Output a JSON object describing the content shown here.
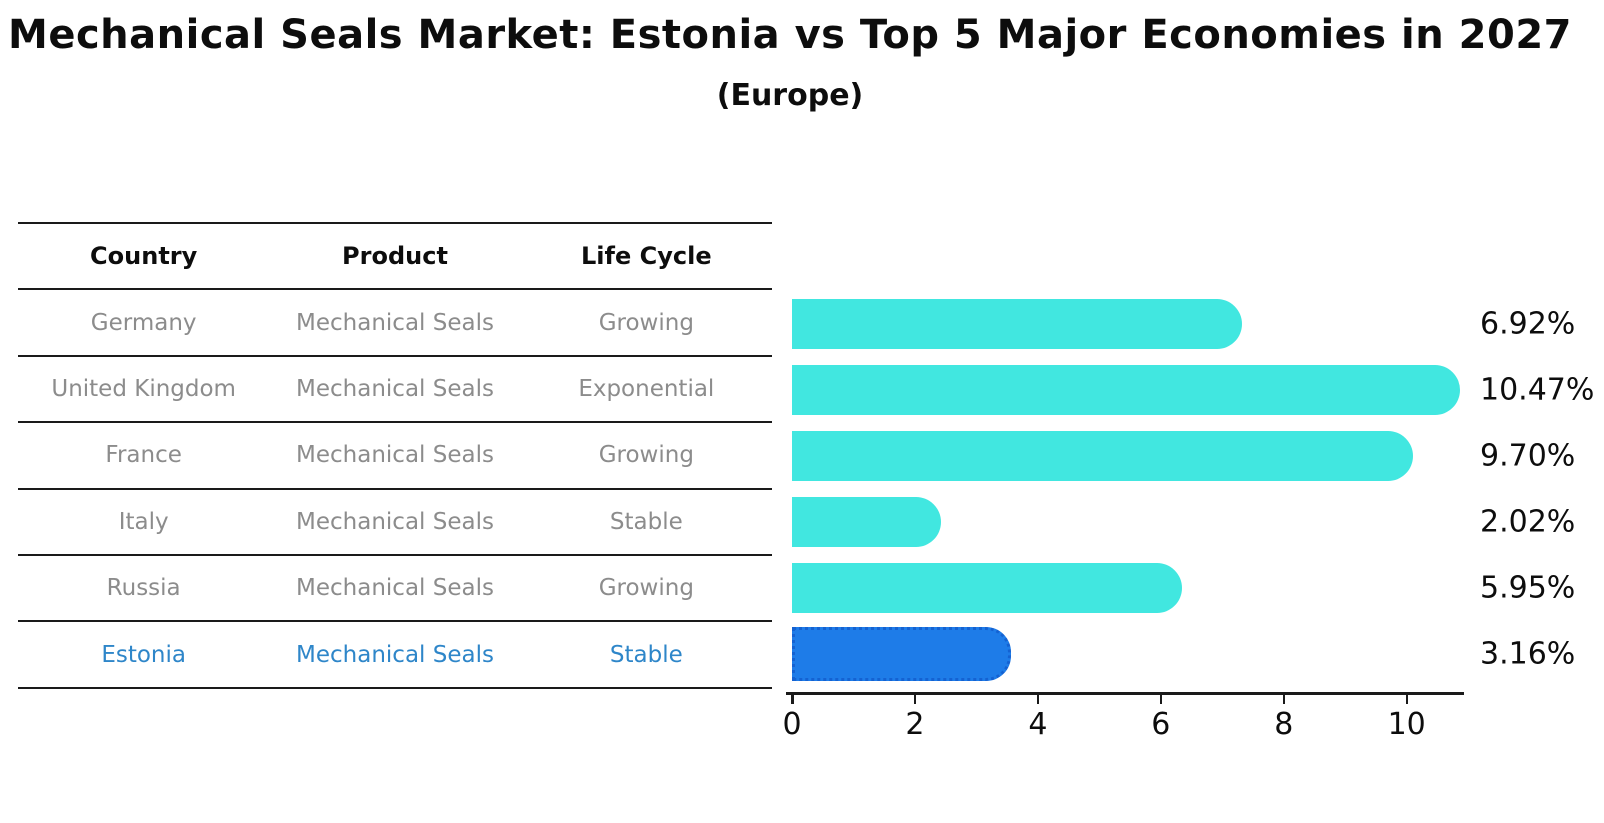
{
  "title": "Mechanical Seals Market: Estonia vs Top 5 Major Economies in 2027",
  "subtitle": "(Europe)",
  "table": {
    "headers": [
      "Country",
      "Product",
      "Life Cycle"
    ],
    "rows": [
      {
        "country": "Germany",
        "product": "Mechanical Seals",
        "life_cycle": "Growing",
        "highlight": false
      },
      {
        "country": "United Kingdom",
        "product": "Mechanical Seals",
        "life_cycle": "Exponential",
        "highlight": false
      },
      {
        "country": "France",
        "product": "Mechanical Seals",
        "life_cycle": "Growing",
        "highlight": false
      },
      {
        "country": "Italy",
        "product": "Mechanical Seals",
        "life_cycle": "Stable",
        "highlight": false
      },
      {
        "country": "Russia",
        "product": "Mechanical Seals",
        "life_cycle": "Growing",
        "highlight": false
      },
      {
        "country": "Estonia",
        "product": "Mechanical Seals",
        "life_cycle": "Stable",
        "highlight": true
      }
    ]
  },
  "chart_data": {
    "type": "bar",
    "orientation": "horizontal",
    "title": "Mechanical Seals Market: Estonia vs Top 5 Major Economies in 2027 (Europe)",
    "categories": [
      "Germany",
      "United Kingdom",
      "France",
      "Italy",
      "Russia",
      "Estonia"
    ],
    "values": [
      6.92,
      10.47,
      9.7,
      2.02,
      5.95,
      3.16
    ],
    "value_labels": [
      "6.92%",
      "10.47%",
      "9.70%",
      "2.02%",
      "5.95%",
      "3.16%"
    ],
    "unit": "%",
    "x_ticks": [
      0,
      2,
      4,
      6,
      8,
      10
    ],
    "xlim": [
      0,
      10.9
    ],
    "grid": false,
    "legend": false,
    "bar_color": "#41e7e0",
    "highlight_index": 5,
    "highlight_color": "#1e7ce8",
    "highlight_border_color": "#1462d2",
    "highlight_text_color": "#2e86c9"
  }
}
